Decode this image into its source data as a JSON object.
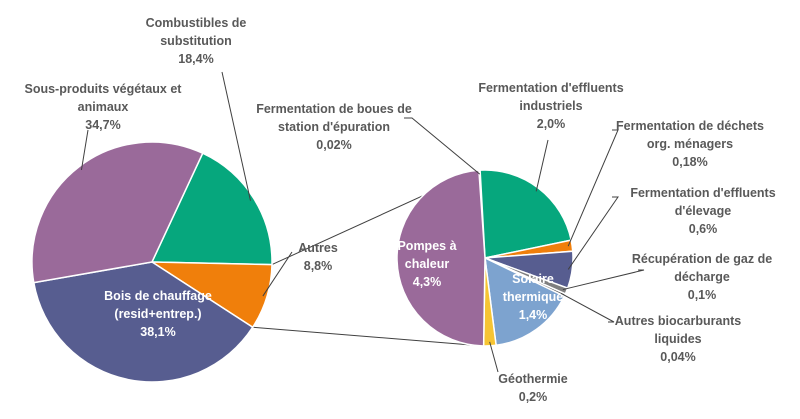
{
  "chart_data": [
    {
      "type": "pie",
      "categories": [
        "Combustibles de substitution",
        "Autres",
        "Bois de chauffage (resid+entrep.)",
        "Sous-produits végétaux et animaux"
      ],
      "values": [
        18.4,
        8.8,
        38.1,
        34.7
      ],
      "value_labels": [
        "18,4%",
        "8,8%",
        "38,1%",
        "34,7%"
      ],
      "colors": [
        "#06A77D",
        "#F07F0B",
        "#575D90",
        "#9A6A9A"
      ],
      "label_lines": [
        [
          "Combustibles de",
          "substitution",
          "18,4%"
        ],
        [
          "Autres",
          "8,8%"
        ],
        [
          "Bois de chauffage",
          "(resid+entrep.)",
          "38,1%"
        ],
        [
          "Sous-produits végétaux et",
          "animaux",
          "34,7%"
        ]
      ]
    },
    {
      "type": "pie",
      "categories": [
        "Fermentation de boues de station d'épuration",
        "Fermentation d'effluents industriels",
        "Fermentation de déchets org. ménagers",
        "Fermentation d'effluents d'élevage",
        "Récupération de gaz de décharge",
        "Autres biocarburants liquides",
        "Solaire thermique",
        "Géothermie",
        "Pompes à chaleur"
      ],
      "values": [
        0.02,
        2.0,
        0.18,
        0.6,
        0.1,
        0.04,
        1.4,
        0.2,
        4.3
      ],
      "value_labels": [
        "0,02%",
        "2,0%",
        "0,18%",
        "0,6%",
        "0,1%",
        "0,04%",
        "1,4%",
        "0,2%",
        "4,3%"
      ],
      "colors": [
        "#4D4D4D",
        "#06A77D",
        "#F07F0B",
        "#575D90",
        "#7F7F7F",
        "#595959",
        "#7DA3CF",
        "#F6C433",
        "#9A6A9A"
      ],
      "label_lines": [
        [
          "Fermentation de boues de",
          "station d'épuration",
          "0,02%"
        ],
        [
          "Fermentation d'effluents",
          "industriels",
          "2,0%"
        ],
        [
          "Fermentation de déchets",
          "org. ménagers",
          "0,18%"
        ],
        [
          "Fermentation d'effluents",
          "d'élevage",
          "0,6%"
        ],
        [
          "Récupération de gaz de",
          "décharge",
          "0,1%"
        ],
        [
          "Autres biocarburants",
          "liquides",
          "0,04%"
        ],
        [
          "Solaire",
          "thermique",
          "1,4%"
        ],
        [
          "Géothermie",
          "0,2%"
        ],
        [
          "Pompes à",
          "chaleur",
          "4,3%"
        ]
      ]
    }
  ]
}
